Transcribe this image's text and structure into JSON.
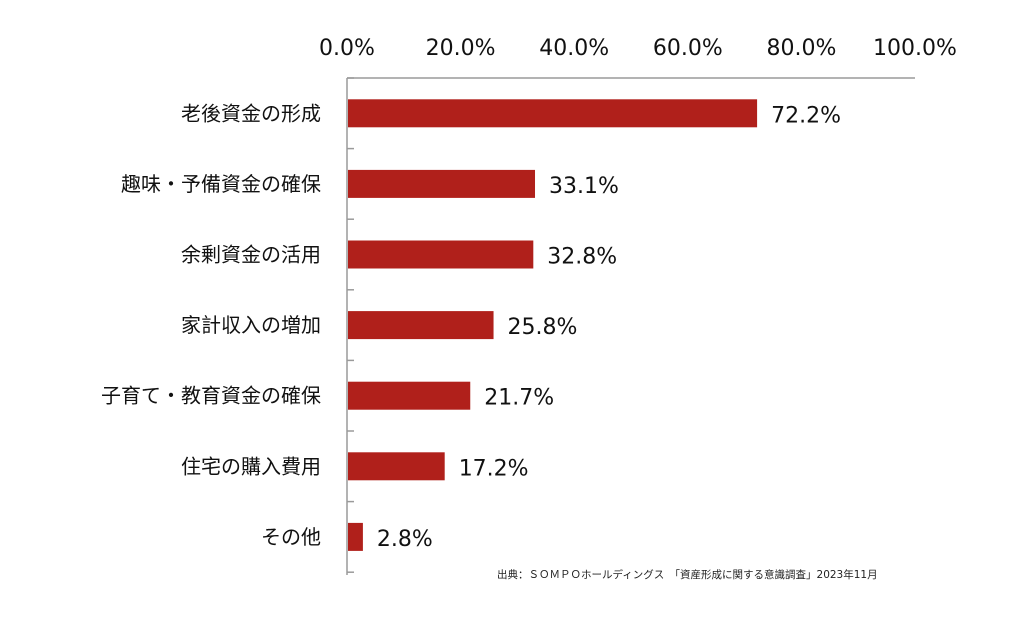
{
  "chart_data": {
    "type": "bar",
    "orientation": "horizontal",
    "categories": [
      "老後資金の形成",
      "趣味・予備資金の確保",
      "余剰資金の活用",
      "家計収入の増加",
      "子育て・教育資金の確保",
      "住宅の購入費用",
      "その他"
    ],
    "values": [
      72.2,
      33.1,
      32.8,
      25.8,
      21.7,
      17.2,
      2.8
    ],
    "value_labels": [
      "72.2%",
      "33.1%",
      "32.8%",
      "25.8%",
      "21.7%",
      "17.2%",
      "2.8%"
    ],
    "x_ticks": [
      0,
      20,
      40,
      60,
      80,
      100
    ],
    "x_tick_labels": [
      "0.0%",
      "20.0%",
      "40.0%",
      "60.0%",
      "80.0%",
      "100.0%"
    ],
    "xlim": [
      0,
      100
    ],
    "x_axis_position": "top",
    "grid": false,
    "legend": "none",
    "bar_color": "#b0201b",
    "title": "",
    "xlabel": "",
    "ylabel": ""
  },
  "source_note": "出典：ＳＯＭＰＯホールディングス　「資産形成に関する意識調査」2023年11月"
}
